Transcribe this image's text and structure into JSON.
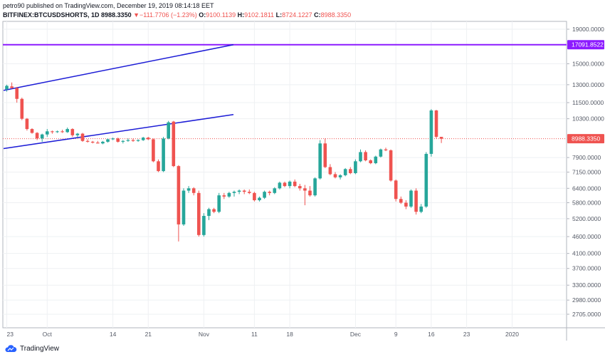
{
  "header": {
    "publisher_line": "petro90 published on TradingView.com, December 19, 2019 08:14:18 EET",
    "symbol": "BITFINEX:BTCUSDSHORTS, 1D",
    "last": "8988.3350",
    "change": "−111.7706 (−1.23%)",
    "o_label": "O:",
    "o": "9100.1139",
    "h_label": "H:",
    "h": "9102.1811",
    "l_label": "L:",
    "l": "8724.1227",
    "c_label": "C:",
    "c": "8988.3350"
  },
  "footer": {
    "brand": "TradingView"
  },
  "colors": {
    "up": "#26a69a",
    "down": "#ef5350",
    "purple": "#8c1aff",
    "blue": "#1c1cd6"
  },
  "chart_data": {
    "type": "candlestick",
    "y_scale": "log",
    "y_ticks": [
      "19000.0000",
      "17091.8522",
      "15000.0000",
      "13000.0000",
      "11500.0000",
      "10300.0000",
      "8988.3350",
      "7900.0000",
      "7150.0000",
      "6400.0000",
      "5800.0000",
      "5200.0000",
      "4600.0000",
      "4100.0000",
      "3700.0000",
      "3300.0000",
      "2980.0000",
      "2705.0000"
    ],
    "x_ticks": [
      "23",
      "Oct",
      "14",
      "21",
      "Nov",
      "11",
      "18",
      "Dec",
      "9",
      "16",
      "23",
      "2020"
    ],
    "last_price": 8988.335,
    "horizontal_line": 17091.8522,
    "candles": [
      {
        "date": "2019-09-23",
        "o": 12600,
        "h": 13000,
        "l": 12400,
        "c": 12900
      },
      {
        "date": "2019-09-24",
        "o": 12850,
        "h": 13200,
        "l": 12650,
        "c": 12700
      },
      {
        "date": "2019-09-25",
        "o": 12700,
        "h": 12800,
        "l": 11500,
        "c": 11800
      },
      {
        "date": "2019-09-26",
        "o": 11800,
        "h": 11900,
        "l": 10200,
        "c": 10300
      },
      {
        "date": "2019-09-27",
        "o": 10300,
        "h": 10350,
        "l": 9500,
        "c": 9600
      },
      {
        "date": "2019-09-28",
        "o": 9600,
        "h": 9650,
        "l": 9300,
        "c": 9350
      },
      {
        "date": "2019-09-29",
        "o": 9350,
        "h": 9400,
        "l": 8900,
        "c": 9000
      },
      {
        "date": "2019-09-30",
        "o": 9000,
        "h": 9300,
        "l": 8800,
        "c": 9250
      },
      {
        "date": "2019-10-01",
        "o": 9250,
        "h": 9600,
        "l": 9100,
        "c": 9450
      },
      {
        "date": "2019-10-02",
        "o": 9450,
        "h": 9500,
        "l": 9300,
        "c": 9400
      },
      {
        "date": "2019-10-03",
        "o": 9400,
        "h": 9500,
        "l": 9350,
        "c": 9450
      },
      {
        "date": "2019-10-04",
        "o": 9450,
        "h": 9550,
        "l": 9350,
        "c": 9400
      },
      {
        "date": "2019-10-05",
        "o": 9400,
        "h": 9700,
        "l": 9350,
        "c": 9600
      },
      {
        "date": "2019-10-06",
        "o": 9600,
        "h": 9650,
        "l": 9100,
        "c": 9200
      },
      {
        "date": "2019-10-07",
        "o": 9200,
        "h": 9350,
        "l": 9050,
        "c": 9300
      },
      {
        "date": "2019-10-08",
        "o": 9300,
        "h": 9350,
        "l": 8800,
        "c": 8850
      },
      {
        "date": "2019-10-09",
        "o": 8850,
        "h": 8950,
        "l": 8750,
        "c": 8800
      },
      {
        "date": "2019-10-10",
        "o": 8800,
        "h": 8850,
        "l": 8700,
        "c": 8750
      },
      {
        "date": "2019-10-11",
        "o": 8750,
        "h": 8850,
        "l": 8700,
        "c": 8700
      },
      {
        "date": "2019-10-12",
        "o": 8700,
        "h": 8850,
        "l": 8650,
        "c": 8800
      },
      {
        "date": "2019-10-13",
        "o": 8800,
        "h": 9000,
        "l": 8750,
        "c": 8950
      },
      {
        "date": "2019-10-14",
        "o": 8950,
        "h": 9050,
        "l": 8900,
        "c": 9000
      },
      {
        "date": "2019-10-15",
        "o": 9000,
        "h": 9050,
        "l": 8750,
        "c": 8800
      },
      {
        "date": "2019-10-16",
        "o": 8800,
        "h": 8900,
        "l": 8700,
        "c": 8850
      },
      {
        "date": "2019-10-17",
        "o": 8850,
        "h": 9000,
        "l": 8800,
        "c": 8900
      },
      {
        "date": "2019-10-18",
        "o": 8900,
        "h": 9000,
        "l": 8800,
        "c": 8850
      },
      {
        "date": "2019-10-19",
        "o": 8850,
        "h": 8950,
        "l": 8800,
        "c": 8900
      },
      {
        "date": "2019-10-20",
        "o": 8900,
        "h": 9100,
        "l": 8850,
        "c": 9050
      },
      {
        "date": "2019-10-21",
        "o": 9050,
        "h": 9100,
        "l": 8900,
        "c": 8950
      },
      {
        "date": "2019-10-22",
        "o": 8950,
        "h": 9000,
        "l": 7650,
        "c": 7700
      },
      {
        "date": "2019-10-23",
        "o": 7700,
        "h": 7800,
        "l": 7150,
        "c": 7200
      },
      {
        "date": "2019-10-24",
        "o": 7200,
        "h": 9100,
        "l": 7150,
        "c": 9000
      },
      {
        "date": "2019-10-25",
        "o": 9000,
        "h": 10150,
        "l": 8950,
        "c": 10050
      },
      {
        "date": "2019-10-26",
        "o": 10100,
        "h": 10150,
        "l": 7400,
        "c": 7450
      },
      {
        "date": "2019-10-27",
        "o": 7450,
        "h": 7500,
        "l": 4450,
        "c": 5000
      },
      {
        "date": "2019-10-28",
        "o": 5000,
        "h": 6400,
        "l": 4950,
        "c": 6300
      },
      {
        "date": "2019-10-29",
        "o": 6300,
        "h": 6500,
        "l": 6200,
        "c": 6400
      },
      {
        "date": "2019-10-30",
        "o": 6400,
        "h": 6450,
        "l": 6100,
        "c": 6200
      },
      {
        "date": "2019-10-31",
        "o": 6200,
        "h": 6300,
        "l": 4600,
        "c": 4650
      },
      {
        "date": "2019-11-01",
        "o": 4650,
        "h": 5400,
        "l": 4600,
        "c": 5300
      },
      {
        "date": "2019-11-02",
        "o": 5300,
        "h": 5600,
        "l": 5150,
        "c": 5550
      },
      {
        "date": "2019-11-03",
        "o": 5550,
        "h": 5600,
        "l": 5400,
        "c": 5450
      },
      {
        "date": "2019-11-04",
        "o": 5450,
        "h": 6200,
        "l": 5400,
        "c": 6100
      },
      {
        "date": "2019-11-05",
        "o": 6100,
        "h": 6200,
        "l": 5950,
        "c": 6050
      },
      {
        "date": "2019-11-06",
        "o": 6050,
        "h": 6250,
        "l": 6000,
        "c": 6200
      },
      {
        "date": "2019-11-07",
        "o": 6200,
        "h": 6300,
        "l": 6050,
        "c": 6250
      },
      {
        "date": "2019-11-08",
        "o": 6250,
        "h": 6350,
        "l": 6150,
        "c": 6300
      },
      {
        "date": "2019-11-09",
        "o": 6300,
        "h": 6350,
        "l": 6150,
        "c": 6250
      },
      {
        "date": "2019-11-10",
        "o": 6250,
        "h": 6350,
        "l": 6150,
        "c": 6200
      },
      {
        "date": "2019-11-11",
        "o": 6200,
        "h": 6250,
        "l": 5850,
        "c": 5900
      },
      {
        "date": "2019-11-12",
        "o": 5900,
        "h": 6050,
        "l": 5850,
        "c": 6000
      },
      {
        "date": "2019-11-13",
        "o": 6000,
        "h": 6300,
        "l": 5950,
        "c": 6250
      },
      {
        "date": "2019-11-14",
        "o": 6250,
        "h": 6300,
        "l": 6100,
        "c": 6200
      },
      {
        "date": "2019-11-15",
        "o": 6200,
        "h": 6450,
        "l": 6150,
        "c": 6400
      },
      {
        "date": "2019-11-16",
        "o": 6400,
        "h": 6700,
        "l": 6350,
        "c": 6650
      },
      {
        "date": "2019-11-17",
        "o": 6650,
        "h": 6700,
        "l": 6450,
        "c": 6500
      },
      {
        "date": "2019-11-18",
        "o": 6500,
        "h": 6750,
        "l": 6400,
        "c": 6700
      },
      {
        "date": "2019-11-19",
        "o": 6700,
        "h": 6800,
        "l": 6450,
        "c": 6500
      },
      {
        "date": "2019-11-20",
        "o": 6500,
        "h": 6600,
        "l": 6300,
        "c": 6400
      },
      {
        "date": "2019-11-21",
        "o": 6400,
        "h": 6550,
        "l": 5700,
        "c": 6300
      },
      {
        "date": "2019-11-22",
        "o": 6300,
        "h": 6500,
        "l": 6050,
        "c": 6100
      },
      {
        "date": "2019-11-23",
        "o": 6100,
        "h": 6900,
        "l": 6050,
        "c": 6850
      },
      {
        "date": "2019-11-24",
        "o": 6850,
        "h": 8900,
        "l": 6800,
        "c": 8700
      },
      {
        "date": "2019-11-25",
        "o": 8700,
        "h": 9000,
        "l": 7350,
        "c": 7400
      },
      {
        "date": "2019-11-26",
        "o": 7400,
        "h": 7550,
        "l": 7000,
        "c": 7050
      },
      {
        "date": "2019-11-27",
        "o": 7050,
        "h": 7150,
        "l": 6850,
        "c": 6900
      },
      {
        "date": "2019-11-28",
        "o": 6900,
        "h": 7050,
        "l": 6800,
        "c": 7000
      },
      {
        "date": "2019-11-29",
        "o": 7000,
        "h": 7350,
        "l": 6950,
        "c": 7300
      },
      {
        "date": "2019-11-30",
        "o": 7300,
        "h": 7400,
        "l": 7050,
        "c": 7100
      },
      {
        "date": "2019-12-01",
        "o": 7100,
        "h": 7800,
        "l": 7050,
        "c": 7700
      },
      {
        "date": "2019-12-02",
        "o": 7700,
        "h": 8350,
        "l": 7650,
        "c": 8200
      },
      {
        "date": "2019-12-03",
        "o": 8200,
        "h": 8300,
        "l": 7700,
        "c": 7750
      },
      {
        "date": "2019-12-04",
        "o": 7750,
        "h": 7800,
        "l": 7550,
        "c": 7600
      },
      {
        "date": "2019-12-05",
        "o": 7600,
        "h": 8000,
        "l": 7550,
        "c": 7950
      },
      {
        "date": "2019-12-06",
        "o": 7950,
        "h": 8400,
        "l": 7900,
        "c": 8350
      },
      {
        "date": "2019-12-07",
        "o": 8350,
        "h": 8450,
        "l": 8250,
        "c": 8300
      },
      {
        "date": "2019-12-08",
        "o": 8300,
        "h": 8350,
        "l": 6700,
        "c": 6750
      },
      {
        "date": "2019-12-09",
        "o": 6750,
        "h": 6800,
        "l": 5850,
        "c": 5950
      },
      {
        "date": "2019-12-10",
        "o": 5950,
        "h": 6050,
        "l": 5750,
        "c": 5800
      },
      {
        "date": "2019-12-11",
        "o": 5800,
        "h": 5900,
        "l": 5550,
        "c": 5650
      },
      {
        "date": "2019-12-12",
        "o": 5650,
        "h": 6350,
        "l": 5600,
        "c": 6300
      },
      {
        "date": "2019-12-13",
        "o": 6300,
        "h": 6400,
        "l": 5350,
        "c": 5450
      },
      {
        "date": "2019-12-14",
        "o": 5450,
        "h": 5750,
        "l": 5400,
        "c": 5650
      },
      {
        "date": "2019-12-15",
        "o": 5650,
        "h": 8200,
        "l": 5600,
        "c": 8100
      },
      {
        "date": "2019-12-16",
        "o": 8100,
        "h": 11000,
        "l": 7950,
        "c": 10900
      },
      {
        "date": "2019-12-17",
        "o": 10900,
        "h": 10950,
        "l": 9000,
        "c": 9100
      },
      {
        "date": "2019-12-18",
        "o": 9100,
        "h": 9102,
        "l": 8724,
        "c": 8988
      }
    ]
  }
}
